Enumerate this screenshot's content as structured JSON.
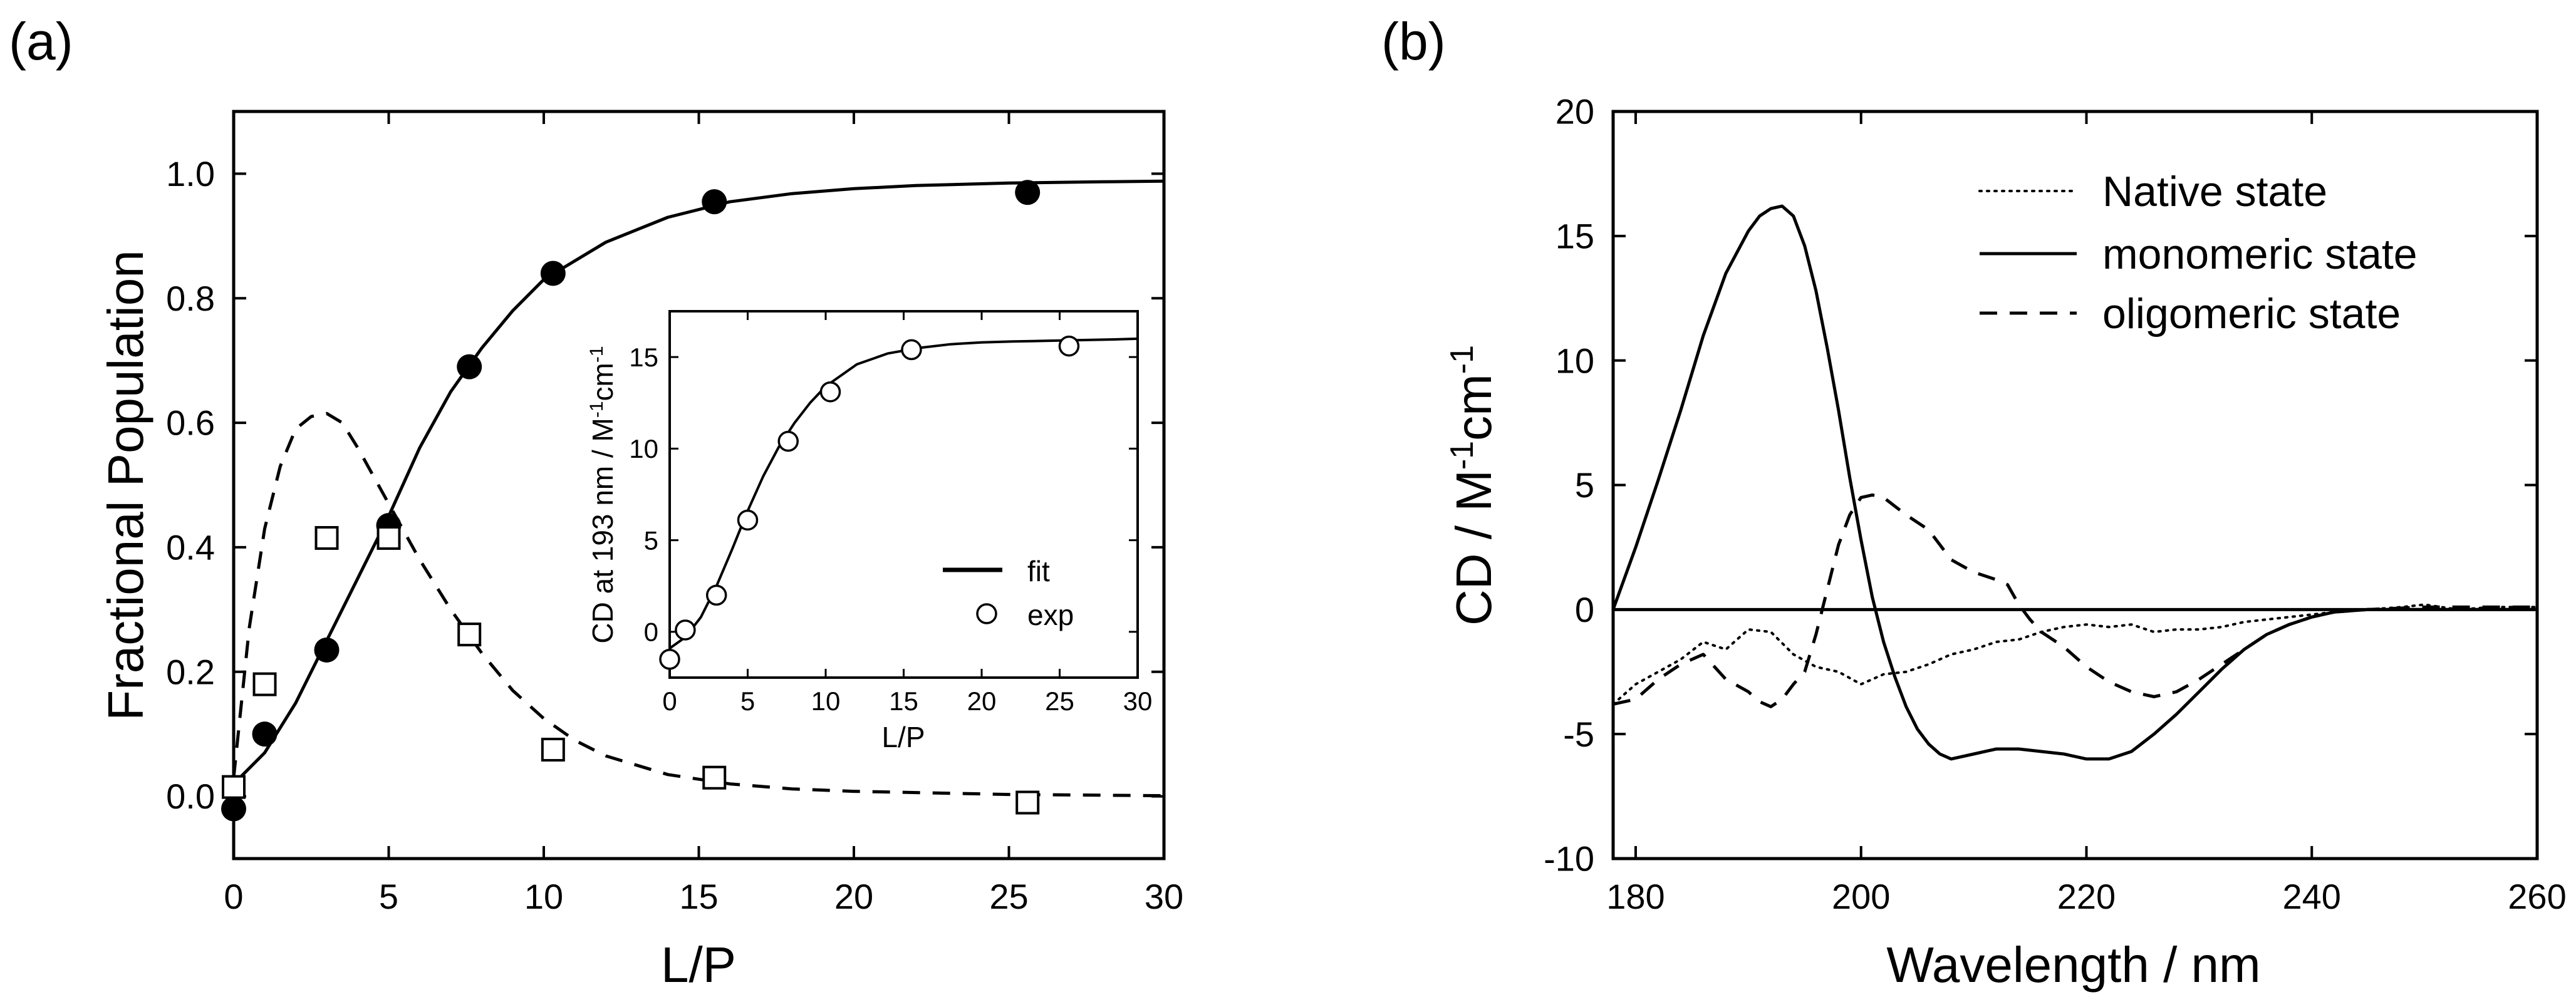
{
  "colors": {
    "ink": "#000000",
    "background": "#ffffff",
    "marker_open": "#ffffff"
  },
  "chart_data": [
    {
      "id": "a",
      "panel_label": "(a)",
      "type": "scatter",
      "title": "",
      "xlabel": "L/P",
      "ylabel": "Fractional Population",
      "xlim": [
        0,
        30
      ],
      "ylim": [
        -0.1,
        1.1
      ],
      "xticks": [
        0,
        5,
        10,
        15,
        20,
        25,
        30
      ],
      "xtick_labels": [
        "0",
        "5",
        "10",
        "15",
        "20",
        "25",
        "30"
      ],
      "yticks": [
        0.0,
        0.2,
        0.4,
        0.6,
        0.8,
        1.0
      ],
      "ytick_labels": [
        "0.0",
        "0.2",
        "0.4",
        "0.6",
        "0.8",
        "1.0"
      ],
      "grid": false,
      "series": [
        {
          "name": "filled circles",
          "marker": "filled-circle",
          "x": [
            0,
            1,
            3,
            5,
            7.6,
            10.3,
            15.5,
            25.6
          ],
          "y": [
            -0.02,
            0.1,
            0.235,
            0.435,
            0.69,
            0.84,
            0.955,
            0.97
          ]
        },
        {
          "name": "open squares",
          "marker": "open-square",
          "x": [
            0,
            1,
            3,
            5,
            7.6,
            10.3,
            15.5,
            25.6
          ],
          "y": [
            0.015,
            0.18,
            0.415,
            0.415,
            0.26,
            0.075,
            0.03,
            -0.01
          ]
        },
        {
          "name": "sigmoid fit",
          "line": "solid",
          "x": [
            0,
            1,
            2,
            3,
            4,
            5,
            6,
            7,
            8,
            9,
            10,
            12,
            14,
            16,
            18,
            20,
            22,
            25,
            28,
            30
          ],
          "y": [
            0.02,
            0.07,
            0.15,
            0.25,
            0.35,
            0.45,
            0.56,
            0.65,
            0.72,
            0.78,
            0.83,
            0.89,
            0.93,
            0.955,
            0.968,
            0.976,
            0.981,
            0.985,
            0.987,
            0.988
          ]
        },
        {
          "name": "intermediate fit",
          "line": "dashed",
          "x": [
            0,
            0.5,
            1,
            1.5,
            2,
            2.5,
            3,
            3.5,
            4,
            5,
            6,
            7,
            8,
            9,
            10,
            11,
            12,
            14,
            16,
            18,
            20,
            25,
            30
          ],
          "y": [
            0.03,
            0.27,
            0.43,
            0.53,
            0.59,
            0.61,
            0.615,
            0.6,
            0.56,
            0.47,
            0.38,
            0.3,
            0.23,
            0.17,
            0.125,
            0.09,
            0.065,
            0.035,
            0.02,
            0.012,
            0.008,
            0.003,
            0.001
          ]
        }
      ],
      "inset": {
        "type": "scatter",
        "xlabel": "L/P",
        "ylabel_main": "CD at 193 nm / M",
        "ylabel_exp1": "-1",
        "ylabel_mid": "cm",
        "ylabel_exp2": "-1",
        "xlim": [
          0,
          30
        ],
        "ylim": [
          -2.5,
          17.5
        ],
        "xticks": [
          0,
          5,
          10,
          15,
          20,
          25,
          30
        ],
        "xtick_labels": [
          "0",
          "5",
          "10",
          "15",
          "20",
          "25",
          "30"
        ],
        "yticks": [
          0,
          5,
          10,
          15
        ],
        "ytick_labels": [
          "0",
          "5",
          "10",
          "15"
        ],
        "legend": [
          {
            "label": "fit",
            "style": "solid-line"
          },
          {
            "label": "exp",
            "style": "open-circle"
          }
        ],
        "series": [
          {
            "name": "exp",
            "marker": "open-circle",
            "x": [
              0,
              1,
              3,
              5,
              7.6,
              10.3,
              15.5,
              25.6
            ],
            "y": [
              -1.5,
              0.1,
              2.0,
              6.1,
              10.4,
              13.1,
              15.4,
              15.6
            ]
          },
          {
            "name": "fit",
            "line": "solid",
            "x": [
              0,
              1,
              2,
              3,
              4,
              5,
              6,
              7,
              8,
              9,
              10,
              12,
              14,
              16,
              18,
              20,
              22,
              25,
              28,
              30
            ],
            "y": [
              -0.9,
              -0.3,
              0.8,
              2.5,
              4.5,
              6.6,
              8.5,
              10.1,
              11.4,
              12.5,
              13.4,
              14.6,
              15.2,
              15.5,
              15.7,
              15.8,
              15.85,
              15.9,
              15.95,
              16.0
            ]
          }
        ]
      }
    },
    {
      "id": "b",
      "panel_label": "(b)",
      "type": "line",
      "title": "",
      "xlabel": "Wavelength / nm",
      "ylabel_main": "CD / M",
      "ylabel_exp1": "-1",
      "ylabel_mid": "cm",
      "ylabel_exp2": "-1",
      "xlim": [
        178,
        260
      ],
      "ylim": [
        -10,
        20
      ],
      "xticks": [
        180,
        200,
        220,
        240,
        260
      ],
      "xtick_labels": [
        "180",
        "200",
        "220",
        "240",
        "260"
      ],
      "yticks": [
        -10,
        -5,
        0,
        5,
        10,
        15,
        20
      ],
      "ytick_labels": [
        "-10",
        "-5",
        "0",
        "5",
        "10",
        "15",
        "20"
      ],
      "grid": false,
      "zero_line": true,
      "legend_position": "top-right",
      "series": [
        {
          "name": "Native state",
          "line": "dotted",
          "x": [
            178,
            180,
            182,
            184,
            186,
            188,
            190,
            192,
            194,
            196,
            198,
            200,
            202,
            204,
            206,
            208,
            210,
            212,
            214,
            216,
            218,
            220,
            222,
            224,
            226,
            228,
            230,
            232,
            234,
            236,
            238,
            240,
            242,
            245,
            248,
            250,
            253,
            256,
            260
          ],
          "y": [
            -3.8,
            -3.0,
            -2.5,
            -2.0,
            -1.3,
            -1.6,
            -0.8,
            -0.9,
            -1.8,
            -2.3,
            -2.5,
            -3.0,
            -2.6,
            -2.5,
            -2.2,
            -1.8,
            -1.6,
            -1.3,
            -1.2,
            -0.9,
            -0.7,
            -0.6,
            -0.7,
            -0.6,
            -0.9,
            -0.8,
            -0.8,
            -0.7,
            -0.5,
            -0.4,
            -0.3,
            -0.2,
            -0.1,
            0.0,
            0.1,
            0.2,
            0.0,
            0.1,
            0.1
          ]
        },
        {
          "name": "monomeric state",
          "line": "solid",
          "x": [
            178,
            180,
            182,
            184,
            186,
            188,
            190,
            191,
            192,
            193,
            194,
            195,
            196,
            197,
            198,
            199,
            200,
            201,
            202,
            203,
            204,
            205,
            206,
            207,
            208,
            210,
            212,
            214,
            216,
            218,
            220,
            222,
            224,
            226,
            228,
            230,
            232,
            234,
            236,
            238,
            240,
            242,
            245,
            250,
            255,
            260
          ],
          "y": [
            0.0,
            2.5,
            5.2,
            8.0,
            11.0,
            13.5,
            15.2,
            15.8,
            16.1,
            16.2,
            15.8,
            14.6,
            12.8,
            10.5,
            8.0,
            5.3,
            2.8,
            0.5,
            -1.3,
            -2.7,
            -3.9,
            -4.8,
            -5.4,
            -5.8,
            -6.0,
            -5.8,
            -5.6,
            -5.6,
            -5.7,
            -5.8,
            -6.0,
            -6.0,
            -5.7,
            -5.0,
            -4.2,
            -3.3,
            -2.4,
            -1.6,
            -1.0,
            -0.6,
            -0.3,
            -0.1,
            0.0,
            0.0,
            0.0,
            0.0
          ]
        },
        {
          "name": "oligomeric state",
          "line": "dashed",
          "x": [
            178,
            180,
            182,
            184,
            186,
            188,
            190,
            191,
            192,
            193,
            194,
            195,
            196,
            197,
            198,
            199,
            200,
            201,
            202,
            204,
            206,
            208,
            210,
            212,
            213,
            214,
            215,
            216,
            218,
            220,
            222,
            224,
            226,
            228,
            230,
            232,
            234,
            236,
            238,
            240,
            242,
            245,
            250,
            255,
            260
          ],
          "y": [
            -3.8,
            -3.6,
            -2.8,
            -2.2,
            -1.8,
            -2.8,
            -3.3,
            -3.7,
            -3.9,
            -3.6,
            -3.0,
            -2.5,
            -1.0,
            0.8,
            2.6,
            3.8,
            4.5,
            4.6,
            4.5,
            3.8,
            3.2,
            2.0,
            1.5,
            1.2,
            1.0,
            0.2,
            -0.4,
            -0.9,
            -1.5,
            -2.3,
            -2.9,
            -3.3,
            -3.5,
            -3.3,
            -2.8,
            -2.2,
            -1.6,
            -1.0,
            -0.6,
            -0.3,
            -0.1,
            0.0,
            0.1,
            0.1,
            0.1
          ]
        }
      ]
    }
  ]
}
